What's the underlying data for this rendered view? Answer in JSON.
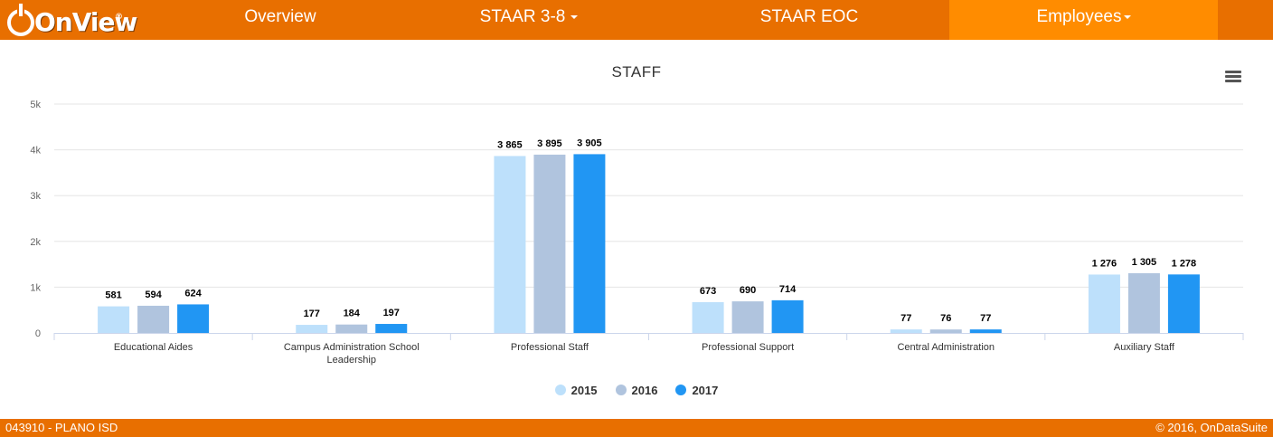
{
  "brand": {
    "logo_text": "OnView",
    "registered": "®"
  },
  "nav": {
    "overview": "Overview",
    "staar38": "STAAR 3-8",
    "staar_eoc": "STAAR EOC",
    "employees": "Employees"
  },
  "toolbar": {
    "menu_icon": "hamburger-icon"
  },
  "footer": {
    "left": "043910 - PLANO ISD",
    "right": "© 2016, OnDataSuite"
  },
  "colors": {
    "accent": "#e86f00",
    "active_tab": "#ff8c00"
  },
  "chart_data": {
    "type": "bar",
    "title": "STAFF",
    "categories": [
      [
        "Educational Aides"
      ],
      [
        "Campus Administration School",
        "Leadership"
      ],
      [
        "Professional Staff"
      ],
      [
        "Professional Support"
      ],
      [
        "Central Administration"
      ],
      [
        "Auxiliary Staff"
      ]
    ],
    "series": [
      {
        "name": "2015",
        "color": "#bde0fb",
        "values": [
          581,
          177,
          3865,
          673,
          77,
          1276
        ],
        "labels": [
          "581",
          "177",
          "3 865",
          "673",
          "77",
          "1 276"
        ]
      },
      {
        "name": "2016",
        "color": "#b0c4de",
        "values": [
          594,
          184,
          3895,
          690,
          76,
          1305
        ],
        "labels": [
          "594",
          "184",
          "3 895",
          "690",
          "76",
          "1 305"
        ]
      },
      {
        "name": "2017",
        "color": "#2196f3",
        "values": [
          624,
          197,
          3905,
          714,
          77,
          1278
        ],
        "labels": [
          "624",
          "197",
          "3 905",
          "714",
          "77",
          "1 278"
        ]
      }
    ],
    "ylim": [
      0,
      5000
    ],
    "yticks": [
      {
        "value": 0,
        "label": "0"
      },
      {
        "value": 1000,
        "label": "1k"
      },
      {
        "value": 2000,
        "label": "2k"
      },
      {
        "value": 3000,
        "label": "3k"
      },
      {
        "value": 4000,
        "label": "4k"
      },
      {
        "value": 5000,
        "label": "5k"
      }
    ],
    "grid": true,
    "legend": "bottom-center"
  }
}
